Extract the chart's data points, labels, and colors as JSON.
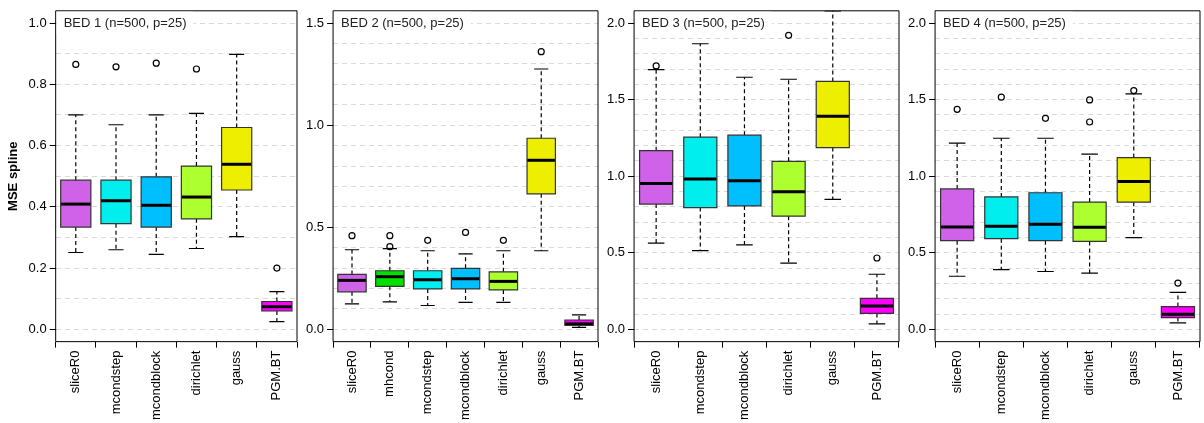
{
  "chart_data": [
    {
      "type": "box",
      "title": "BED 1 (n=500, p=25)",
      "ylabel": "MSE spline",
      "grid": "y",
      "categories": [
        "sliceR0",
        "mcondstep",
        "mcondblock",
        "dirichlet",
        "gauss",
        "PGM.BT"
      ],
      "colors": [
        "#d062ea",
        "#00eeee",
        "#00bfff",
        "#adff2f",
        "#eeee00",
        "#ff00ff"
      ],
      "boxes": [
        {
          "low": 0.251,
          "q1": 0.334,
          "median": 0.409,
          "q3": 0.487,
          "high": 0.7,
          "outliers": [
            0.865
          ]
        },
        {
          "low": 0.26,
          "q1": 0.345,
          "median": 0.42,
          "q3": 0.487,
          "high": 0.668,
          "outliers": [
            0.857
          ]
        },
        {
          "low": 0.245,
          "q1": 0.334,
          "median": 0.405,
          "q3": 0.498,
          "high": 0.7,
          "outliers": [
            0.869
          ]
        },
        {
          "low": 0.264,
          "q1": 0.361,
          "median": 0.432,
          "q3": 0.533,
          "high": 0.705,
          "outliers": [
            0.85
          ]
        },
        {
          "low": 0.303,
          "q1": 0.455,
          "median": 0.539,
          "q3": 0.659,
          "high": 0.898
        },
        {
          "low": 0.025,
          "q1": 0.06,
          "median": 0.074,
          "q3": 0.091,
          "high": 0.123,
          "outliers": [
            0.2
          ]
        }
      ],
      "ylim": [
        -0.04,
        1.04
      ],
      "yticks": [
        {
          "value": 0,
          "label": "0.0"
        },
        {
          "value": 0.1,
          "label": null
        },
        {
          "value": 0.2,
          "label": "0.2"
        },
        {
          "value": 0.3,
          "label": null
        },
        {
          "value": 0.4,
          "label": "0.4"
        },
        {
          "value": 0.5,
          "label": null
        },
        {
          "value": 0.6,
          "label": "0.6"
        },
        {
          "value": 0.7,
          "label": null
        },
        {
          "value": 0.8,
          "label": "0.8"
        },
        {
          "value": 0.9,
          "label": null
        },
        {
          "value": 1,
          "label": "1.0"
        }
      ]
    },
    {
      "type": "box",
      "title": "BED 2 (n=500, p=25)",
      "grid": "y",
      "categories": [
        "sliceR0",
        "mhcond",
        "mcondstep",
        "mcondblock",
        "dirichlet",
        "gauss",
        "PGM.BT"
      ],
      "colors": [
        "#d062ea",
        "#00e000",
        "#00eeee",
        "#00bfff",
        "#adff2f",
        "#eeee00",
        "#ff00ff"
      ],
      "boxes": [
        {
          "low": 0.125,
          "q1": 0.184,
          "median": 0.24,
          "q3": 0.269,
          "high": 0.39,
          "outliers": [
            0.459
          ]
        },
        {
          "low": 0.135,
          "q1": 0.211,
          "median": 0.258,
          "q3": 0.287,
          "high": 0.395,
          "outliers": [
            0.459,
            0.405
          ]
        },
        {
          "low": 0.117,
          "q1": 0.198,
          "median": 0.243,
          "q3": 0.287,
          "high": 0.385,
          "outliers": [
            0.436
          ]
        },
        {
          "low": 0.132,
          "q1": 0.198,
          "median": 0.248,
          "q3": 0.299,
          "high": 0.37,
          "outliers": [
            0.475
          ]
        },
        {
          "low": 0.132,
          "q1": 0.193,
          "median": 0.235,
          "q3": 0.282,
          "high": 0.385,
          "outliers": [
            0.436
          ]
        },
        {
          "low": 0.385,
          "q1": 0.664,
          "median": 0.828,
          "q3": 0.936,
          "high": 1.275,
          "outliers": [
            1.36
          ]
        },
        {
          "low": 0.01,
          "q1": 0.019,
          "median": 0.027,
          "q3": 0.046,
          "high": 0.071
        }
      ],
      "ylim": [
        -0.06,
        1.56
      ],
      "yticks": [
        {
          "value": 0,
          "label": "0.0"
        },
        {
          "value": 0.1,
          "label": null
        },
        {
          "value": 0.2,
          "label": null
        },
        {
          "value": 0.3,
          "label": null
        },
        {
          "value": 0.4,
          "label": null
        },
        {
          "value": 0.5,
          "label": "0.5"
        },
        {
          "value": 0.6,
          "label": null
        },
        {
          "value": 0.7,
          "label": null
        },
        {
          "value": 0.8,
          "label": null
        },
        {
          "value": 0.9,
          "label": null
        },
        {
          "value": 1,
          "label": "1.0"
        },
        {
          "value": 1.1,
          "label": null
        },
        {
          "value": 1.2,
          "label": null
        },
        {
          "value": 1.3,
          "label": null
        },
        {
          "value": 1.4,
          "label": null
        },
        {
          "value": 1.5,
          "label": "1.5"
        }
      ]
    },
    {
      "type": "box",
      "title": "BED 3 (n=500, p=25)",
      "grid": "y",
      "categories": [
        "sliceR0",
        "mcondstep",
        "mcondblock",
        "dirichlet",
        "gauss",
        "PGM.BT"
      ],
      "colors": [
        "#d062ea",
        "#00eeee",
        "#00bfff",
        "#adff2f",
        "#eeee00",
        "#ff00ff"
      ],
      "boxes": [
        {
          "low": 0.563,
          "q1": 0.818,
          "median": 0.953,
          "q3": 1.167,
          "high": 1.696,
          "outliers": [
            1.72
          ]
        },
        {
          "low": 0.514,
          "q1": 0.795,
          "median": 0.982,
          "q3": 1.255,
          "high": 1.865
        },
        {
          "low": 0.552,
          "q1": 0.806,
          "median": 0.971,
          "q3": 1.268,
          "high": 1.646
        },
        {
          "low": 0.432,
          "q1": 0.739,
          "median": 0.899,
          "q3": 1.097,
          "high": 1.633,
          "outliers": [
            1.92
          ]
        },
        {
          "low": 0.849,
          "q1": 1.187,
          "median": 1.392,
          "q3": 1.619,
          "high": 2.08
        },
        {
          "low": 0.036,
          "q1": 0.104,
          "median": 0.153,
          "q3": 0.203,
          "high": 0.36,
          "outliers": [
            0.466
          ]
        }
      ],
      "ylim": [
        -0.08,
        2.08
      ],
      "yticks": [
        {
          "value": 0,
          "label": "0.0"
        },
        {
          "value": 0.1,
          "label": null
        },
        {
          "value": 0.2,
          "label": null
        },
        {
          "value": 0.3,
          "label": null
        },
        {
          "value": 0.4,
          "label": null
        },
        {
          "value": 0.5,
          "label": "0.5"
        },
        {
          "value": 0.6,
          "label": null
        },
        {
          "value": 0.7,
          "label": null
        },
        {
          "value": 0.8,
          "label": null
        },
        {
          "value": 0.9,
          "label": null
        },
        {
          "value": 1,
          "label": "1.0"
        },
        {
          "value": 1.1,
          "label": null
        },
        {
          "value": 1.2,
          "label": null
        },
        {
          "value": 1.3,
          "label": null
        },
        {
          "value": 1.4,
          "label": null
        },
        {
          "value": 1.5,
          "label": "1.5"
        },
        {
          "value": 1.6,
          "label": null
        },
        {
          "value": 1.7,
          "label": null
        },
        {
          "value": 1.8,
          "label": null
        },
        {
          "value": 1.9,
          "label": null
        },
        {
          "value": 2,
          "label": "2.0"
        }
      ]
    },
    {
      "type": "box",
      "title": "BED 4 (n=500, p=25)",
      "grid": "y",
      "categories": [
        "sliceR0",
        "mcondstep",
        "mcondblock",
        "dirichlet",
        "gauss",
        "PGM.BT"
      ],
      "colors": [
        "#d062ea",
        "#00eeee",
        "#00bfff",
        "#adff2f",
        "#eeee00",
        "#ff00ff"
      ],
      "boxes": [
        {
          "low": 0.347,
          "q1": 0.579,
          "median": 0.669,
          "q3": 0.917,
          "high": 1.216,
          "outliers": [
            1.437
          ]
        },
        {
          "low": 0.39,
          "q1": 0.592,
          "median": 0.673,
          "q3": 0.865,
          "high": 1.248,
          "outliers": [
            1.516
          ]
        },
        {
          "low": 0.378,
          "q1": 0.579,
          "median": 0.687,
          "q3": 0.892,
          "high": 1.248,
          "outliers": [
            1.378
          ]
        },
        {
          "low": 0.367,
          "q1": 0.574,
          "median": 0.667,
          "q3": 0.831,
          "high": 1.144,
          "outliers": [
            1.498,
            1.354
          ]
        },
        {
          "low": 0.599,
          "q1": 0.831,
          "median": 0.966,
          "q3": 1.122,
          "high": 1.538,
          "outliers": [
            1.559
          ]
        },
        {
          "low": 0.043,
          "q1": 0.077,
          "median": 0.099,
          "q3": 0.149,
          "high": 0.241,
          "outliers": [
            0.302
          ]
        }
      ],
      "ylim": [
        -0.08,
        2.08
      ],
      "yticks": [
        {
          "value": 0,
          "label": "0.0"
        },
        {
          "value": 0.1,
          "label": null
        },
        {
          "value": 0.2,
          "label": null
        },
        {
          "value": 0.3,
          "label": null
        },
        {
          "value": 0.4,
          "label": null
        },
        {
          "value": 0.5,
          "label": "0.5"
        },
        {
          "value": 0.6,
          "label": null
        },
        {
          "value": 0.7,
          "label": null
        },
        {
          "value": 0.8,
          "label": null
        },
        {
          "value": 0.9,
          "label": null
        },
        {
          "value": 1,
          "label": "1.0"
        },
        {
          "value": 1.1,
          "label": null
        },
        {
          "value": 1.2,
          "label": null
        },
        {
          "value": 1.3,
          "label": null
        },
        {
          "value": 1.4,
          "label": null
        },
        {
          "value": 1.5,
          "label": "1.5"
        },
        {
          "value": 1.6,
          "label": null
        },
        {
          "value": 1.7,
          "label": null
        },
        {
          "value": 1.8,
          "label": null
        },
        {
          "value": 1.9,
          "label": null
        },
        {
          "value": 2,
          "label": "2.0"
        }
      ]
    }
  ]
}
